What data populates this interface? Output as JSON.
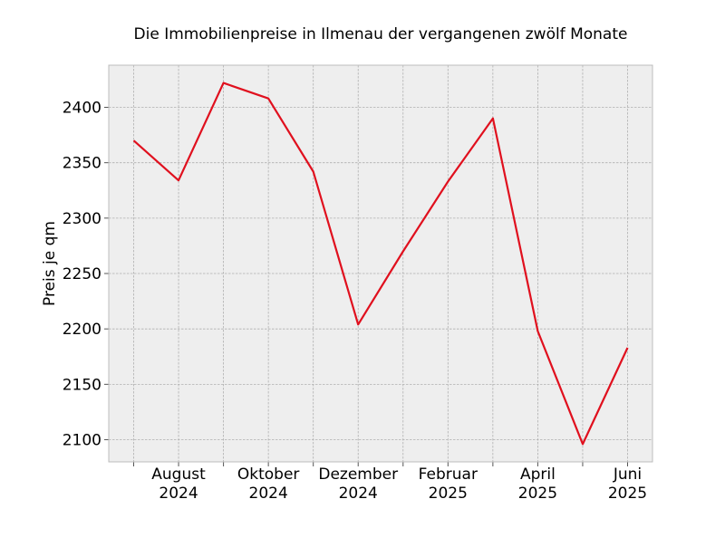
{
  "chart_data": {
    "type": "line",
    "title": "Die Immobilienpreise in Ilmenau der vergangenen zwölf Monate",
    "xlabel": "",
    "ylabel": "Preis je qm",
    "x": [
      "2024-07",
      "2024-08",
      "2024-09",
      "2024-10",
      "2024-11",
      "2024-12",
      "2025-01",
      "2025-02",
      "2025-03",
      "2025-04",
      "2025-05",
      "2025-06"
    ],
    "x_tick_labels": [
      {
        "month": "2024-08",
        "line1": "August",
        "line2": "2024"
      },
      {
        "month": "2024-10",
        "line1": "Oktober",
        "line2": "2024"
      },
      {
        "month": "2024-12",
        "line1": "Dezember",
        "line2": "2024"
      },
      {
        "month": "2025-02",
        "line1": "Februar",
        "line2": "2025"
      },
      {
        "month": "2025-04",
        "line1": "April",
        "line2": "2025"
      },
      {
        "month": "2025-06",
        "line1": "Juni",
        "line2": "2025"
      }
    ],
    "series": [
      {
        "values": [
          2370,
          2334,
          2422,
          2408,
          2342,
          2204,
          2270,
          2333,
          2390,
          2198,
          2096,
          2183
        ],
        "color": "#e0101e"
      }
    ],
    "y_ticks": [
      2100,
      2150,
      2200,
      2250,
      2300,
      2350,
      2400
    ],
    "ylim": [
      2080,
      2438
    ],
    "grid": true,
    "colors": {
      "background": "#eeeeee",
      "grid": "#b0b0b0",
      "frame": "#bcbcbc"
    }
  }
}
